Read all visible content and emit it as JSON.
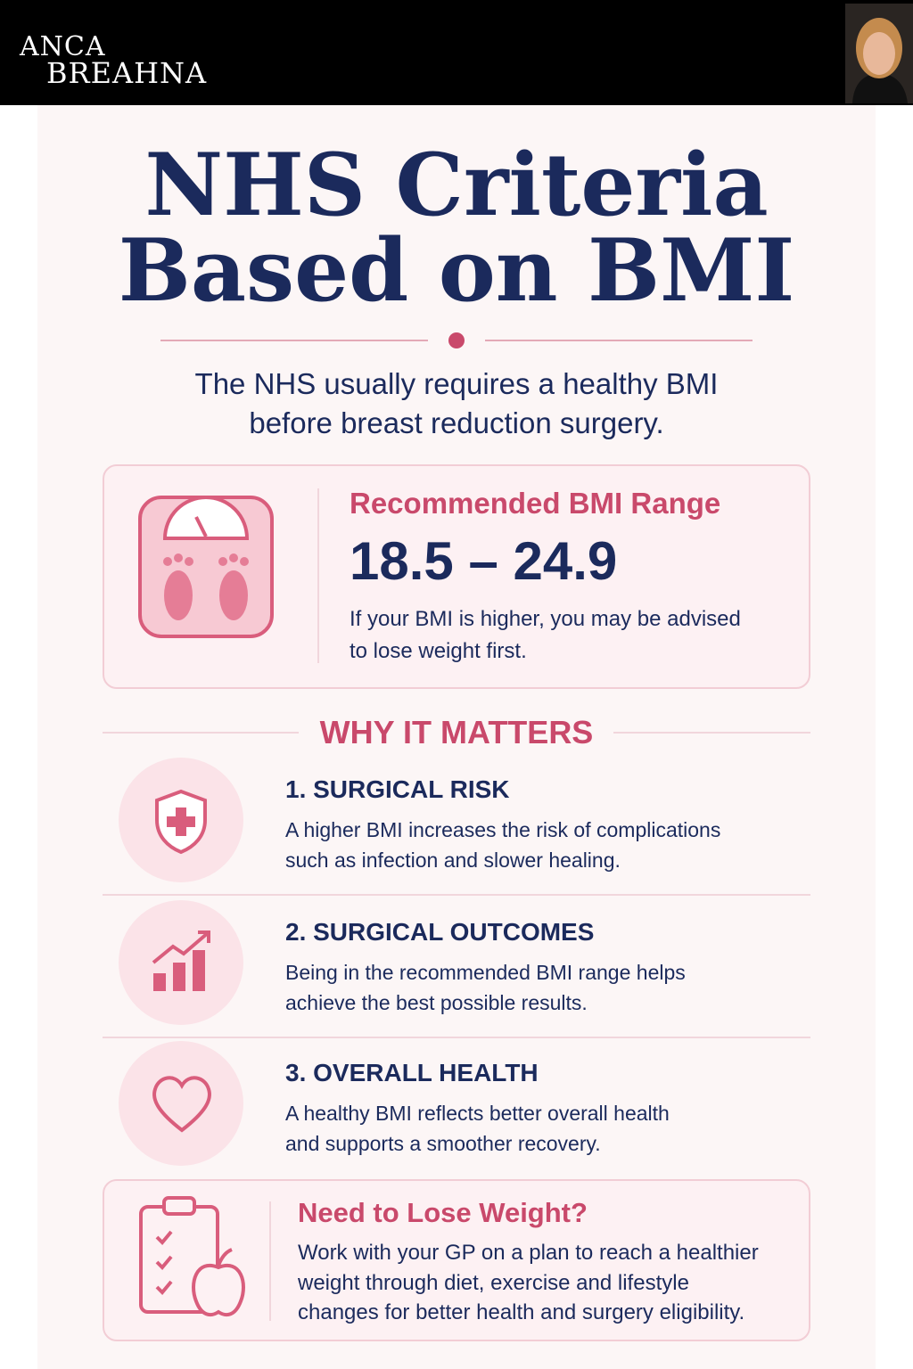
{
  "header": {
    "brand": [
      "ANCA",
      "BREAHNA"
    ]
  },
  "title": [
    "NHS Criteria",
    "Based on BMI"
  ],
  "subtitle": [
    "The NHS usually requires a healthy BMI",
    "before breast reduction surgery."
  ],
  "range_box": {
    "heading": "Recommended BMI Range",
    "range": "18.5 – 24.9",
    "note": [
      "If your BMI is higher, you may be advised",
      "to lose weight first."
    ]
  },
  "section_heading": "WHY IT MATTERS",
  "items": [
    {
      "title": "1. SURGICAL RISK",
      "text": [
        "A higher BMI increases the risk of complications",
        "such as infection and slower healing."
      ]
    },
    {
      "title": "2. SURGICAL OUTCOMES",
      "text": [
        "Being in the recommended BMI range helps",
        "achieve the best possible results."
      ]
    },
    {
      "title": "3. OVERALL HEALTH",
      "text": [
        "A healthy BMI reflects better overall health",
        "and supports a smoother recovery."
      ]
    }
  ],
  "weight_box": {
    "heading": "Need to Lose Weight?",
    "text": [
      "Work with your GP on a plan to reach a healthier",
      "weight through diet, exercise and lifestyle",
      "changes for better health and surgery eligibility."
    ]
  }
}
